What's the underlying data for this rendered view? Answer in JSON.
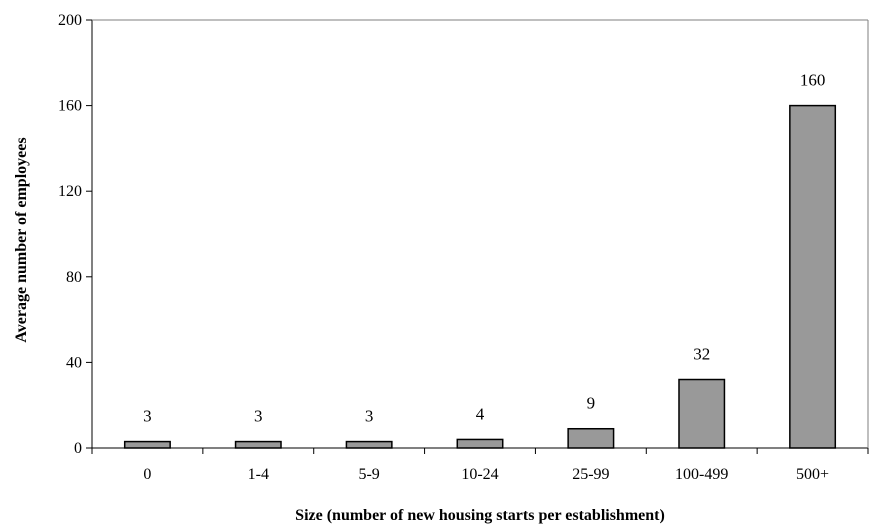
{
  "chart_data": {
    "type": "bar",
    "title": "",
    "xlabel": "Size (number of new housing starts per establishment)",
    "ylabel": "Average number of employees",
    "categories": [
      "0",
      "1-4",
      "5-9",
      "10-24",
      "25-99",
      "100-499",
      "500+"
    ],
    "values": [
      3,
      3,
      3,
      4,
      9,
      32,
      160
    ],
    "data_labels": [
      "3",
      "3",
      "3",
      "4",
      "9",
      "32",
      "160"
    ],
    "ylim": [
      0,
      200
    ],
    "yticks": [
      0,
      40,
      80,
      120,
      160,
      200
    ],
    "ytick_labels": [
      "0",
      "40",
      "80",
      "120",
      "160",
      "200"
    ],
    "grid": false,
    "legend": "none",
    "bar_color": "#999999",
    "bar_edge_color": "#000000"
  }
}
